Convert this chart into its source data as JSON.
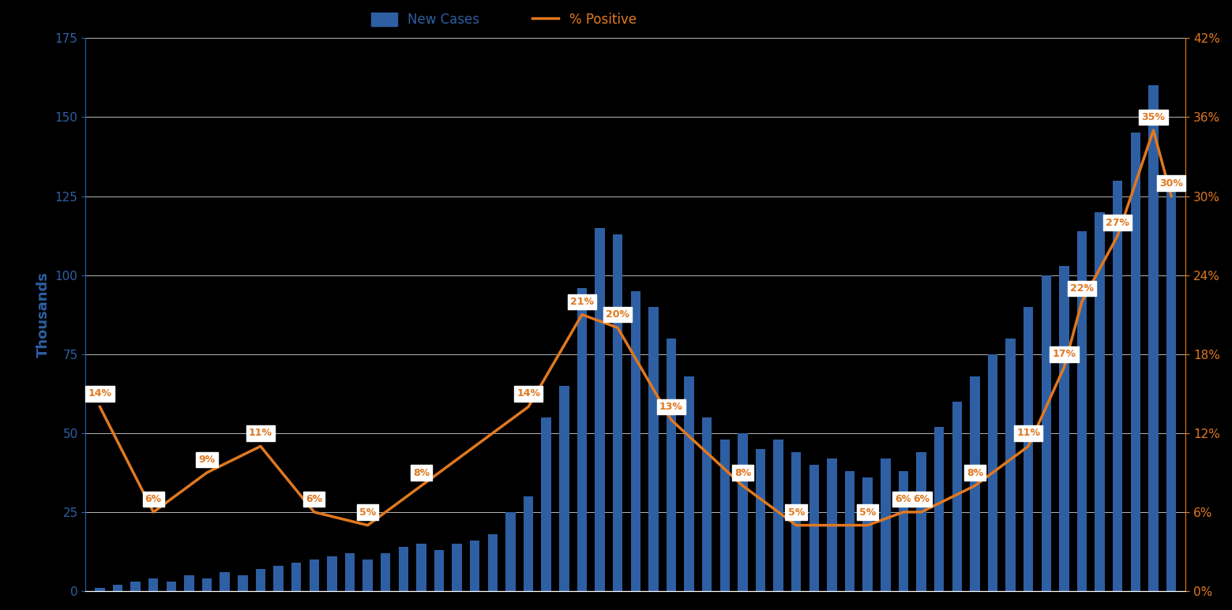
{
  "background_color": "#000000",
  "bar_color": "#2E5FA3",
  "line_color": "#E07820",
  "left_axis_color": "#2E5FA3",
  "right_axis_color": "#E07820",
  "grid_color": "#FFFFFF",
  "text_color": "#FFFFFF",
  "label_color_left": "#2E5FA3",
  "label_color_right": "#E07820",
  "ylabel_left": "Thousands",
  "ylim_left": [
    0,
    175
  ],
  "ylim_right": [
    0,
    0.42
  ],
  "yticks_left": [
    0,
    25,
    50,
    75,
    100,
    125,
    150,
    175
  ],
  "yticks_right": [
    0.0,
    0.06,
    0.12,
    0.18,
    0.24,
    0.3,
    0.36,
    0.42
  ],
  "ytick_labels_right": [
    "0%",
    "6%",
    "12%",
    "18%",
    "24%",
    "30%",
    "36%",
    "42%"
  ],
  "bar_values": [
    1,
    2,
    3,
    4,
    3,
    5,
    4,
    6,
    5,
    7,
    8,
    9,
    10,
    11,
    12,
    10,
    12,
    14,
    15,
    13,
    15,
    16,
    18,
    25,
    30,
    55,
    65,
    96,
    115,
    113,
    95,
    90,
    80,
    68,
    55,
    48,
    50,
    45,
    48,
    44,
    40,
    42,
    38,
    36,
    42,
    38,
    44,
    52,
    60,
    68,
    75,
    80,
    90,
    100,
    103,
    114,
    120,
    130,
    145,
    160,
    128
  ],
  "line_x_positions": [
    0,
    3,
    6,
    9,
    12,
    15,
    18,
    24,
    27,
    29,
    32,
    36,
    39,
    43,
    45,
    46,
    49,
    52,
    54,
    55,
    57,
    59,
    60
  ],
  "line_values": [
    0.14,
    0.06,
    0.09,
    0.11,
    0.06,
    0.05,
    0.08,
    0.14,
    0.21,
    0.2,
    0.13,
    0.08,
    0.05,
    0.05,
    0.06,
    0.06,
    0.08,
    0.11,
    0.17,
    0.22,
    0.27,
    0.35,
    0.3
  ],
  "annotations": [
    {
      "text": "14%",
      "x": 0,
      "value": 0.14
    },
    {
      "text": "6%",
      "x": 3,
      "value": 0.06
    },
    {
      "text": "9%",
      "x": 6,
      "value": 0.09
    },
    {
      "text": "11%",
      "x": 9,
      "value": 0.11
    },
    {
      "text": "6%",
      "x": 12,
      "value": 0.06
    },
    {
      "text": "5%",
      "x": 15,
      "value": 0.05
    },
    {
      "text": "8%",
      "x": 18,
      "value": 0.08
    },
    {
      "text": "14%",
      "x": 24,
      "value": 0.14
    },
    {
      "text": "21%",
      "x": 27,
      "value": 0.21
    },
    {
      "text": "20%",
      "x": 29,
      "value": 0.2
    },
    {
      "text": "13%",
      "x": 32,
      "value": 0.13
    },
    {
      "text": "8%",
      "x": 36,
      "value": 0.08
    },
    {
      "text": "5%",
      "x": 39,
      "value": 0.05
    },
    {
      "text": "5%",
      "x": 43,
      "value": 0.05
    },
    {
      "text": "6%",
      "x": 45,
      "value": 0.06
    },
    {
      "text": "6%",
      "x": 46,
      "value": 0.06
    },
    {
      "text": "8%",
      "x": 49,
      "value": 0.08
    },
    {
      "text": "11%",
      "x": 52,
      "value": 0.11
    },
    {
      "text": "17%",
      "x": 54,
      "value": 0.17
    },
    {
      "text": "22%",
      "x": 55,
      "value": 0.22
    },
    {
      "text": "27%",
      "x": 57,
      "value": 0.27
    },
    {
      "text": "35%",
      "x": 59,
      "value": 0.35
    },
    {
      "text": "30%",
      "x": 60,
      "value": 0.3
    }
  ],
  "legend_bar_label": "New Cases",
  "legend_line_label": "% Positive"
}
